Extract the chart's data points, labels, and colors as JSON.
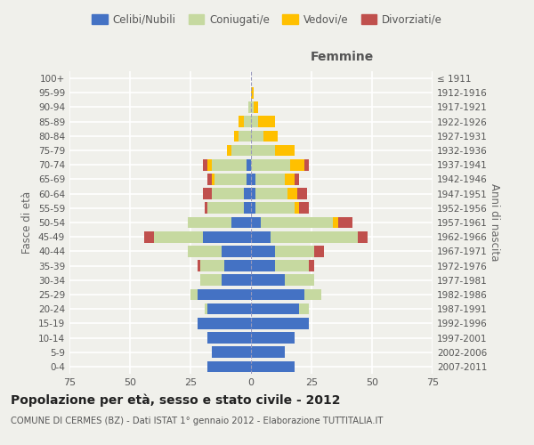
{
  "age_groups": [
    "100+",
    "95-99",
    "90-94",
    "85-89",
    "80-84",
    "75-79",
    "70-74",
    "65-69",
    "60-64",
    "55-59",
    "50-54",
    "45-49",
    "40-44",
    "35-39",
    "30-34",
    "25-29",
    "20-24",
    "15-19",
    "10-14",
    "5-9",
    "0-4"
  ],
  "birth_years": [
    "≤ 1911",
    "1912-1916",
    "1917-1921",
    "1922-1926",
    "1927-1931",
    "1932-1936",
    "1937-1941",
    "1942-1946",
    "1947-1951",
    "1952-1956",
    "1957-1961",
    "1962-1966",
    "1967-1971",
    "1972-1976",
    "1977-1981",
    "1982-1986",
    "1987-1991",
    "1992-1996",
    "1997-2001",
    "2002-2006",
    "2007-2011"
  ],
  "m_cel": [
    0,
    0,
    0,
    0,
    0,
    0,
    2,
    2,
    3,
    3,
    8,
    20,
    12,
    11,
    12,
    22,
    18,
    22,
    18,
    16,
    18
  ],
  "m_con": [
    0,
    0,
    1,
    3,
    5,
    8,
    14,
    13,
    13,
    15,
    18,
    20,
    14,
    10,
    9,
    3,
    1,
    0,
    0,
    0,
    0
  ],
  "m_ved": [
    0,
    0,
    0,
    2,
    2,
    2,
    2,
    1,
    0,
    0,
    0,
    0,
    0,
    0,
    0,
    0,
    0,
    0,
    0,
    0,
    0
  ],
  "m_div": [
    0,
    0,
    0,
    0,
    0,
    0,
    2,
    2,
    4,
    1,
    0,
    4,
    0,
    1,
    0,
    0,
    0,
    0,
    0,
    0,
    0
  ],
  "f_cel": [
    0,
    0,
    0,
    0,
    0,
    0,
    0,
    2,
    2,
    2,
    4,
    8,
    10,
    10,
    14,
    22,
    20,
    24,
    18,
    14,
    18
  ],
  "f_con": [
    0,
    0,
    1,
    3,
    5,
    10,
    16,
    12,
    13,
    16,
    30,
    36,
    16,
    14,
    12,
    7,
    4,
    0,
    0,
    0,
    0
  ],
  "f_ved": [
    0,
    1,
    2,
    7,
    6,
    8,
    6,
    4,
    4,
    2,
    2,
    0,
    0,
    0,
    0,
    0,
    0,
    0,
    0,
    0,
    0
  ],
  "f_div": [
    0,
    0,
    0,
    0,
    0,
    0,
    2,
    2,
    4,
    4,
    6,
    4,
    4,
    2,
    0,
    0,
    0,
    0,
    0,
    0,
    0
  ],
  "colors": {
    "celibi": "#4472c4",
    "coniugati": "#c6d9a0",
    "vedovi": "#ffc000",
    "divorziati": "#c0504d"
  },
  "xlim": 75,
  "title": "Popolazione per età, sesso e stato civile - 2012",
  "subtitle": "COMUNE DI CERMES (BZ) - Dati ISTAT 1° gennaio 2012 - Elaborazione TUTTITALIA.IT",
  "ylabel_left": "Fasce di età",
  "ylabel_right": "Anni di nascita",
  "xlabel_right": "Femmine",
  "legend_labels": [
    "Celibi/Nubili",
    "Coniugati/e",
    "Vedovi/e",
    "Divorziati/e"
  ],
  "bg_color": "#f0f0eb",
  "grid_color": "#ffffff"
}
